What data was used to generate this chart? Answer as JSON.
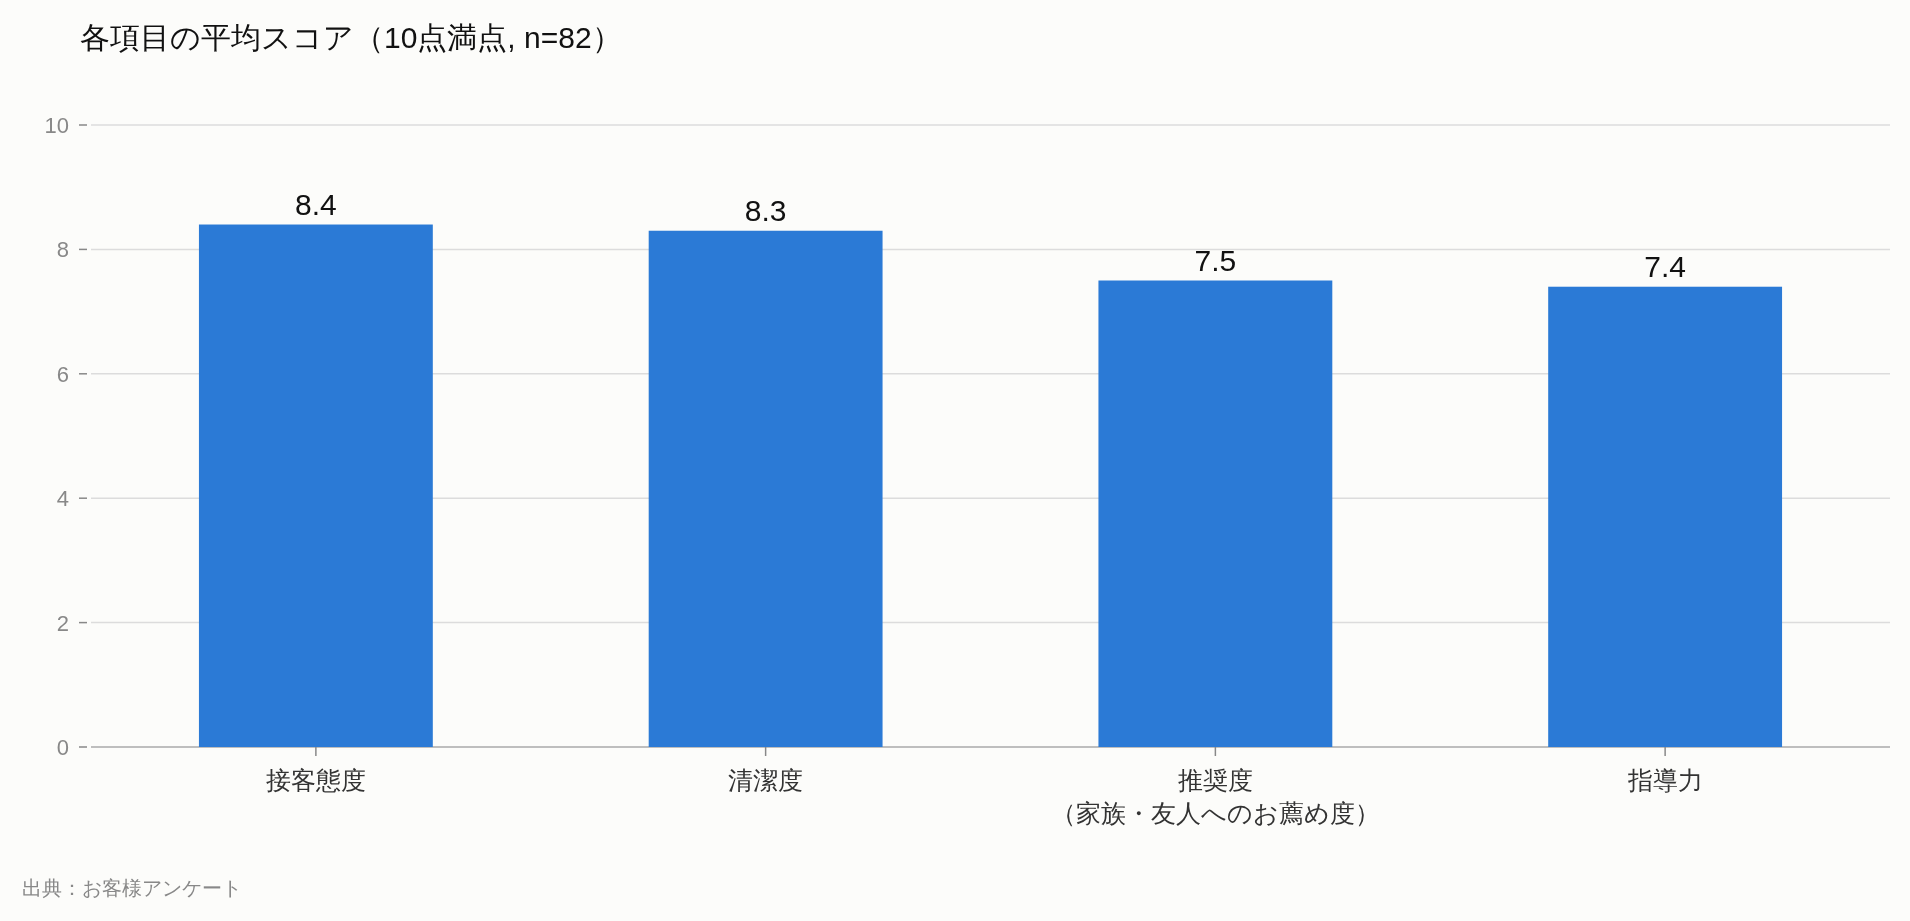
{
  "chart_data": {
    "type": "bar",
    "title": "各項目の平均スコア（10点満点, n=82）",
    "categories": [
      "接客態度",
      "清潔度",
      "推奨度（家族・友人へのお薦め度）",
      "指導力"
    ],
    "values": [
      8.4,
      8.3,
      7.5,
      7.4
    ],
    "color": "#2b7ad6",
    "ylim": [
      0,
      10
    ],
    "yticks": [
      0,
      2,
      4,
      6,
      8,
      10
    ],
    "grid": "y",
    "data_labels": true,
    "annotations": [
      "出典：お客様アンケート"
    ]
  }
}
